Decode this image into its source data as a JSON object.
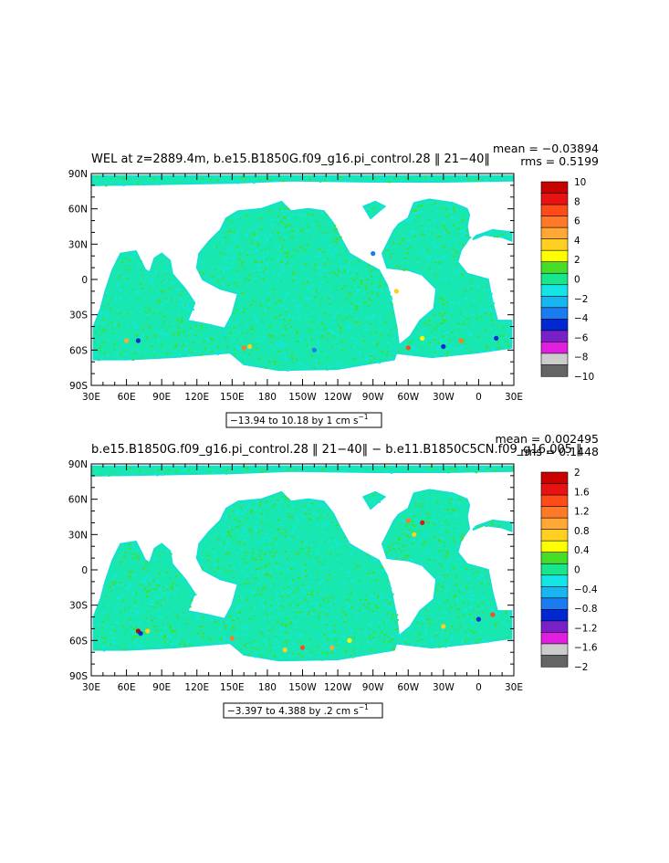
{
  "figures": [
    {
      "title": "WEL at z=2889.4m, b.e15.B1850G.f09_g16.pi_control.28 ‖ 21−40‖",
      "mean_label": "mean = −0.03894",
      "rms_label": "rms = 0.5199",
      "contour_info": "−13.94 to 10.18 by 1 cm s",
      "contour_unit_sup": "−1"
    },
    {
      "title": "b.e15.B1850G.f09_g16.pi_control.28 ‖ 21−40‖ − b.e11.B1850C5CN.f09_g16.005 ‖",
      "mean_label": "mean = 0.002495",
      "rms_label": "rms = 0.1448",
      "contour_info": "−3.397 to 4.388 by .2 cm s",
      "contour_unit_sup": "−1"
    }
  ],
  "chart_data": [
    {
      "type": "heatmap",
      "title": "WEL at z=2889.4m, b.e15.B1850G.f09_g16.pi_control.28 ‖ 21−40‖",
      "variable": "WEL",
      "depth": "z=2889.4m",
      "mean": -0.03894,
      "rms": 0.5199,
      "min": -13.94,
      "max": 10.18,
      "contour_interval": 1,
      "units": "cm s⁻¹",
      "x_ticks": [
        "30E",
        "60E",
        "90E",
        "120E",
        "150E",
        "180",
        "150W",
        "120W",
        "90W",
        "60W",
        "30W",
        "0",
        "30E"
      ],
      "y_ticks": [
        "90N",
        "60N",
        "30N",
        "0",
        "30S",
        "60S",
        "90S"
      ],
      "xlim": [
        30,
        390
      ],
      "ylim": [
        -90,
        90
      ],
      "colorbar_labels": [
        "10",
        "8",
        "6",
        "4",
        "2",
        "0",
        "−2",
        "−4",
        "−6",
        "−8",
        "−10"
      ],
      "colorbar_colors": [
        "#c80000",
        "#e81212",
        "#ff4a1a",
        "#ff7a26",
        "#ffa836",
        "#ffd022",
        "#ffff00",
        "#46dc28",
        "#18e68c",
        "#14e6e6",
        "#18b6f0",
        "#1a7cf0",
        "#0028d2",
        "#7a20c8",
        "#e01ee0",
        "#cccccc",
        "#646464"
      ]
    },
    {
      "type": "heatmap",
      "title": "b.e15.B1850G.f09_g16.pi_control.28 ‖ 21−40‖ − b.e11.B1850C5CN.f09_g16.005 ‖",
      "mean": 0.002495,
      "rms": 0.1448,
      "min": -3.397,
      "max": 4.388,
      "contour_interval": 0.2,
      "units": "cm s⁻¹",
      "x_ticks": [
        "30E",
        "60E",
        "90E",
        "120E",
        "150E",
        "180",
        "150W",
        "120W",
        "90W",
        "60W",
        "30W",
        "0",
        "30E"
      ],
      "y_ticks": [
        "90N",
        "60N",
        "30N",
        "0",
        "30S",
        "60S",
        "90S"
      ],
      "xlim": [
        30,
        390
      ],
      "ylim": [
        -90,
        90
      ],
      "colorbar_labels": [
        "2",
        "1.6",
        "1.2",
        "0.8",
        "0.4",
        "0",
        "−0.4",
        "−0.8",
        "−1.2",
        "−1.6",
        "−2"
      ],
      "colorbar_colors": [
        "#c80000",
        "#e81212",
        "#ff4a1a",
        "#ff7a26",
        "#ffa836",
        "#ffd022",
        "#ffff00",
        "#46dc28",
        "#18e68c",
        "#14e6e6",
        "#18b6f0",
        "#1a7cf0",
        "#0028d2",
        "#7a20c8",
        "#e01ee0",
        "#cccccc",
        "#646464"
      ]
    }
  ]
}
